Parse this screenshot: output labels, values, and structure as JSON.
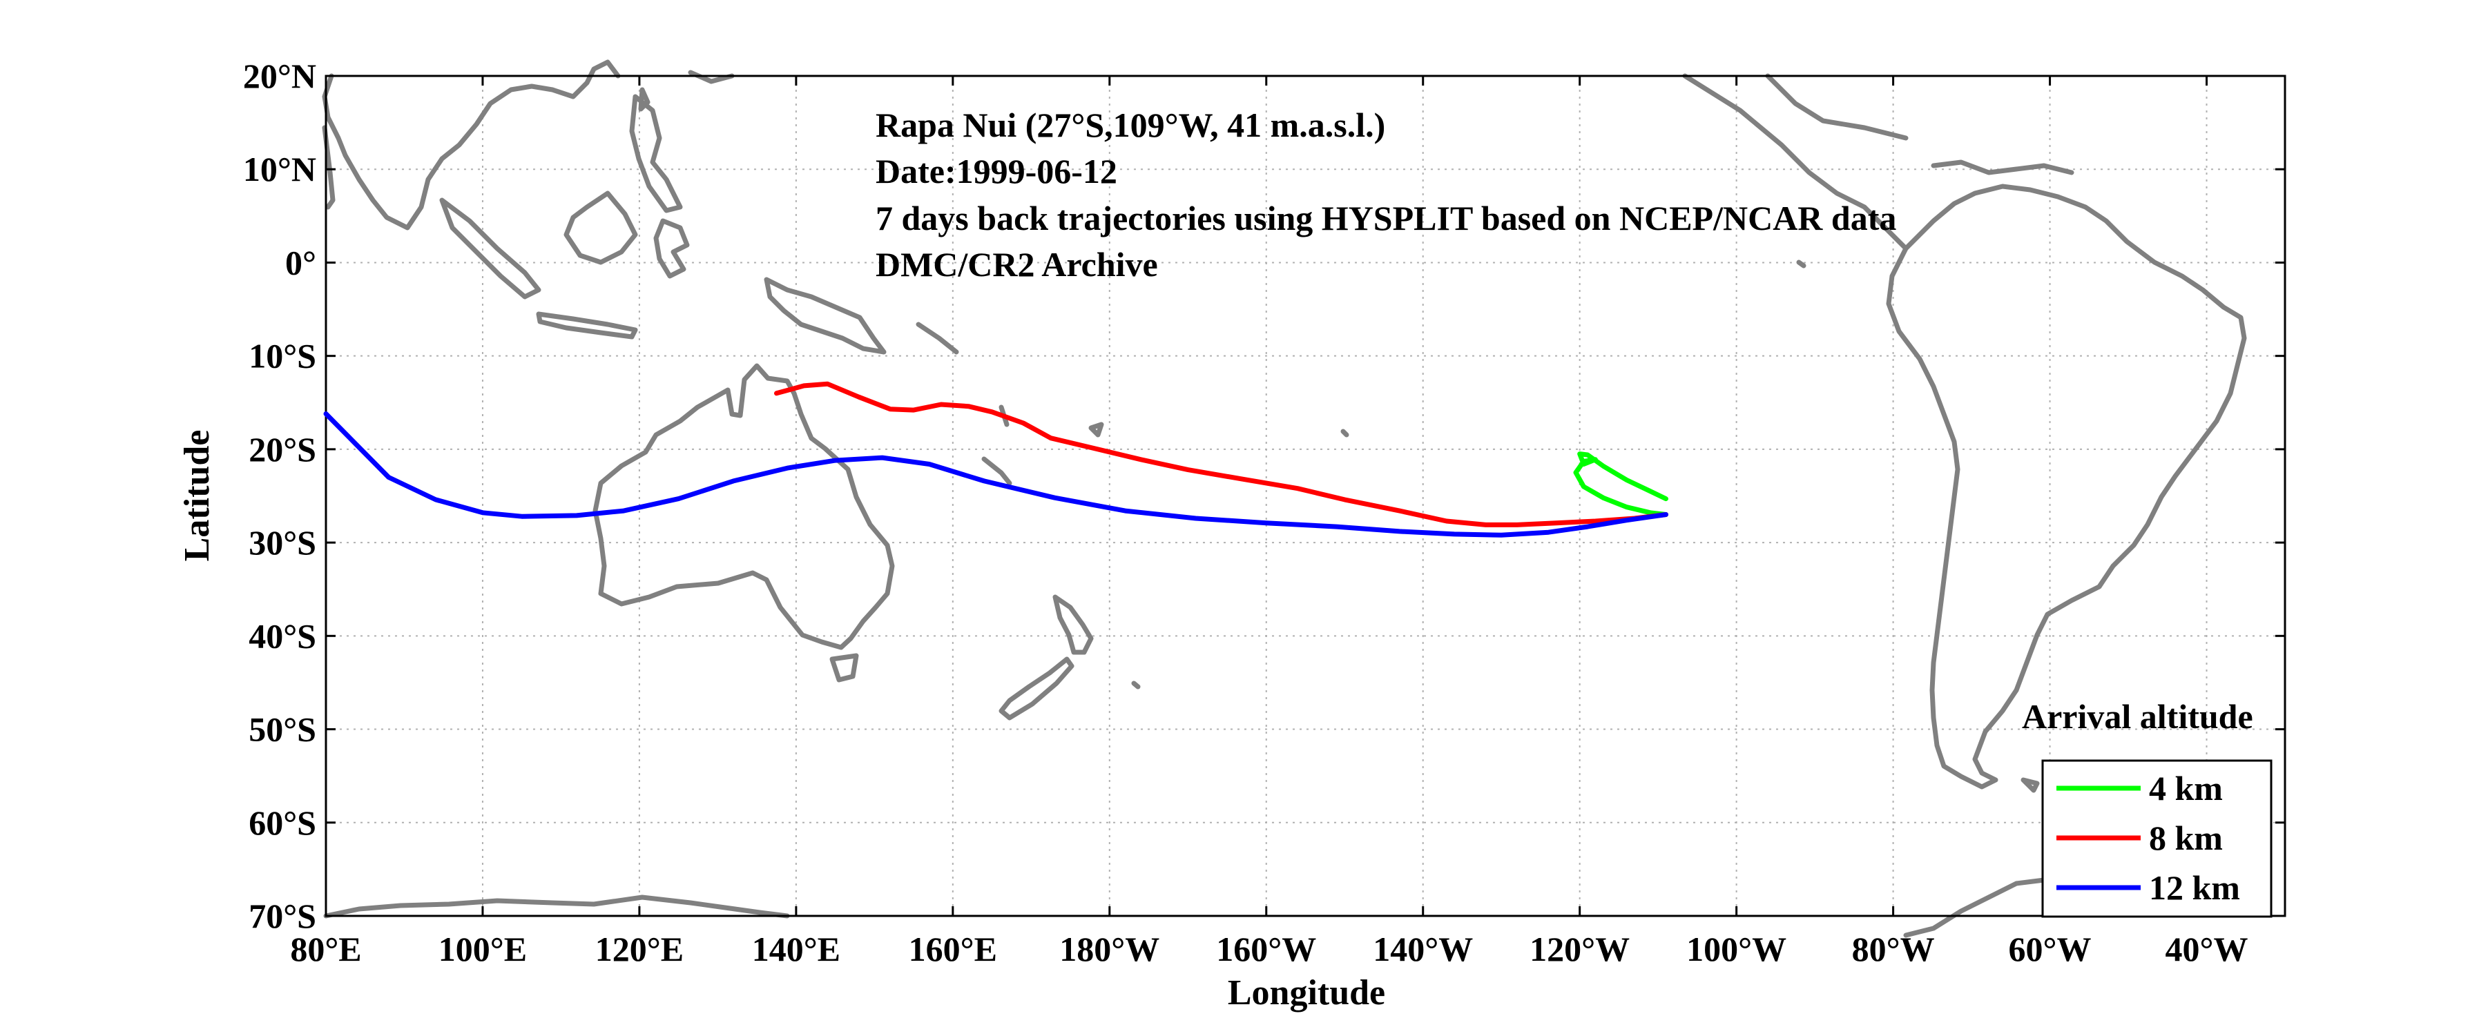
{
  "chart_data": {
    "type": "line",
    "annotations": [
      "Rapa Nui (27°S,109°W, 41 m.a.s.l.)",
      "Date:1999-06-12",
      "7 days back trajectories using HYSPLIT based on NCEP/NCAR data",
      "DMC/CR2 Archive"
    ],
    "xlabel": "Longitude",
    "ylabel": "Latitude",
    "xlim": [
      80,
      330
    ],
    "ylim": [
      -70,
      20
    ],
    "x_ticks": [
      80,
      100,
      120,
      140,
      160,
      180,
      200,
      220,
      240,
      260,
      280,
      300,
      320
    ],
    "x_tick_labels": [
      "80°E",
      "100°E",
      "120°E",
      "140°E",
      "160°E",
      "180°W",
      "160°W",
      "140°W",
      "120°W",
      "100°W",
      "80°W",
      "60°W",
      "40°W"
    ],
    "y_ticks": [
      20,
      10,
      0,
      -10,
      -20,
      -30,
      -40,
      -50,
      -60,
      -70
    ],
    "y_tick_labels": [
      "20°N",
      "10°N",
      "0°",
      "10°S",
      "20°S",
      "30°S",
      "40°S",
      "50°S",
      "60°S",
      "70°S"
    ],
    "grid": true,
    "legend": {
      "title": "Arrival altitude",
      "position": "bottom-right"
    },
    "colors": {
      "coastline": "#808080",
      "grid": "#b0b0b0"
    },
    "series": [
      {
        "name": "4 km",
        "color": "#00ff00",
        "x": [
          251,
          249,
          246,
          243,
          240.5,
          239.5,
          240.5,
          242,
          240.5,
          240,
          241,
          243,
          246,
          249,
          251
        ],
        "y": [
          -27,
          -26.8,
          -26.2,
          -25.2,
          -24,
          -22.5,
          -21.3,
          -21.1,
          -21.6,
          -20.5,
          -20.6,
          -21.8,
          -23.3,
          -24.5,
          -25.3
        ]
      },
      {
        "name": "8 km",
        "color": "#ff0000",
        "x": [
          251,
          247,
          242,
          237,
          232,
          228,
          223,
          217,
          210,
          204,
          197,
          190,
          184,
          178,
          172.5,
          169,
          165,
          162,
          158.5,
          155,
          152,
          148,
          144,
          141,
          137.5
        ],
        "y": [
          -27,
          -27.4,
          -27.7,
          -27.9,
          -28.1,
          -28.1,
          -27.7,
          -26.6,
          -25.4,
          -24.2,
          -23.2,
          -22.2,
          -21.1,
          -19.9,
          -18.8,
          -17.2,
          -16,
          -15.4,
          -15.2,
          -15.8,
          -15.7,
          -14.4,
          -13,
          -13.2,
          -14
        ]
      },
      {
        "name": "12 km",
        "color": "#0000ff",
        "x": [
          251,
          246,
          241,
          236,
          230,
          224,
          217,
          209,
          200,
          191,
          182,
          173,
          164,
          157,
          151,
          145,
          139,
          132,
          125,
          118,
          112,
          105,
          100,
          94,
          88,
          80
        ],
        "y": [
          -27,
          -27.6,
          -28.3,
          -28.9,
          -29.2,
          -29.1,
          -28.8,
          -28.3,
          -27.9,
          -27.4,
          -26.6,
          -25.2,
          -23.4,
          -21.6,
          -20.9,
          -21.2,
          -22,
          -23.4,
          -25.3,
          -26.6,
          -27.1,
          -27.2,
          -26.8,
          -25.4,
          -23,
          -16.2
        ]
      }
    ]
  }
}
